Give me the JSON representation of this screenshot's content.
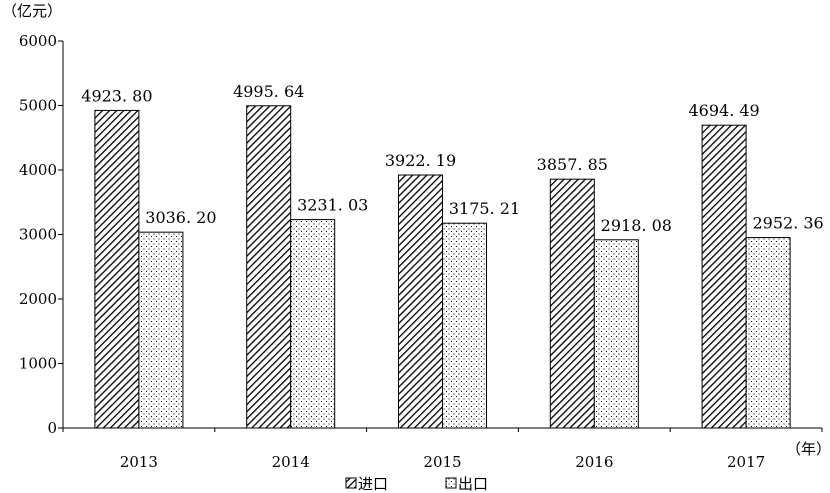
{
  "chart_data": {
    "type": "bar",
    "categories": [
      "2013",
      "2014",
      "2015",
      "2016",
      "2017"
    ],
    "series": [
      {
        "name": "进口",
        "pattern": "diagonal-hatch",
        "values": [
          4923.8,
          4995.64,
          3922.19,
          3857.85,
          4694.49
        ]
      },
      {
        "name": "出口",
        "pattern": "dotted",
        "values": [
          3036.2,
          3231.03,
          3175.21,
          2918.08,
          2952.36
        ]
      }
    ],
    "data_labels": [
      [
        "4923. 80",
        "4995. 64",
        "3922. 19",
        "3857. 85",
        "4694. 49"
      ],
      [
        "3036. 20",
        "3231. 03",
        "3175. 21",
        "2918. 08",
        "2952. 36"
      ]
    ],
    "y_unit_label": "（亿元）",
    "x_unit_label": "（年）",
    "ylim": [
      0,
      6000
    ],
    "yticks": [
      "0",
      "1000",
      "2000",
      "3000",
      "4000",
      "5000",
      "6000"
    ],
    "legend_position": "bottom-center",
    "grid": false,
    "colors": {
      "bar_fill": "#ffffff",
      "stroke": "#000000",
      "pattern": "#000000"
    }
  }
}
